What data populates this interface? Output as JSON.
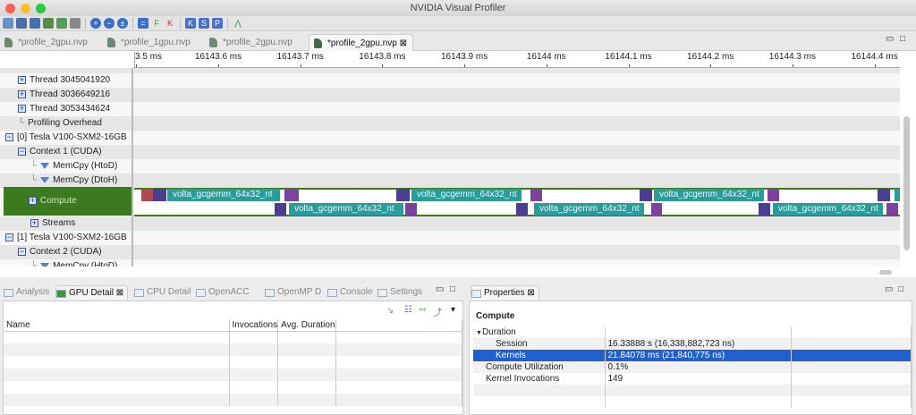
{
  "window": {
    "title": "NVIDIA Visual Profiler"
  },
  "editor_tabs": [
    {
      "label": "*profile_2gpu.nvp"
    },
    {
      "label": "*profile_1gpu.nvp"
    },
    {
      "label": "*profile_2gpu.nvp"
    },
    {
      "label": "*profile_2gpu.nvp",
      "active": true
    }
  ],
  "ruler": {
    "ticks": [
      {
        "t": 16143.5,
        "label": "3.5 ms"
      },
      {
        "t": 16143.6,
        "label": "16143.6 ms"
      },
      {
        "t": 16143.7,
        "label": "16143.7 ms"
      },
      {
        "t": 16143.8,
        "label": "16143.8 ms"
      },
      {
        "t": 16143.9,
        "label": "16143.9 ms"
      },
      {
        "t": 16144.0,
        "label": "16144 ms"
      },
      {
        "t": 16144.1,
        "label": "16144.1 ms"
      },
      {
        "t": 16144.2,
        "label": "16144.2 ms"
      },
      {
        "t": 16144.3,
        "label": "16144.3 ms"
      },
      {
        "t": 16144.4,
        "label": "16144.4 ms"
      }
    ]
  },
  "tree": {
    "rows": [
      {
        "label": "Thread 3045041920",
        "type": "expand",
        "indent": 1
      },
      {
        "label": "Thread 3036649216",
        "type": "expand",
        "indent": 1
      },
      {
        "label": "Thread 3053434624",
        "type": "expand",
        "indent": 1
      },
      {
        "label": "Profiling Overhead",
        "type": "leaf",
        "indent": 1
      },
      {
        "label": "[0] Tesla V100-SXM2-16GB",
        "type": "collapse",
        "indent": 0
      },
      {
        "label": "Context 1 (CUDA)",
        "type": "collapse",
        "indent": 1
      },
      {
        "label": "MemCpy (HtoD)",
        "type": "filter",
        "indent": 2
      },
      {
        "label": "MemCpy (DtoH)",
        "type": "filter",
        "indent": 2
      },
      {
        "label": "Compute",
        "type": "selected",
        "indent": 2
      },
      {
        "label": "Streams",
        "type": "expand",
        "indent": 2
      },
      {
        "label": "[1] Tesla V100-SXM2-16GB",
        "type": "collapse",
        "indent": 0
      },
      {
        "label": "Context 2 (CUDA)",
        "type": "collapse",
        "indent": 1
      },
      {
        "label": "MemCpy (HtoD)",
        "type": "filter",
        "indent": 2
      }
    ]
  },
  "colors": {
    "red": "#b04a52",
    "dark": "#4b3e92",
    "purple": "#7b439e",
    "teal": "#2b9c9a",
    "selection": "#3b7a1f",
    "highlight": "#1f5fcf"
  },
  "kernels": [
    {
      "lane": 0,
      "start": 16143.5073,
      "end": 16143.5215,
      "kind": "red",
      "label": ""
    },
    {
      "lane": 0,
      "start": 16143.5215,
      "end": 16143.5378,
      "kind": "dark",
      "label": ""
    },
    {
      "lane": 0,
      "start": 16143.5389,
      "end": 16143.6763,
      "kind": "teal",
      "label": "volta_gcgemm_64x32_nt"
    },
    {
      "lane": 0,
      "start": 16143.6818,
      "end": 16143.6992,
      "kind": "purple",
      "label": ""
    },
    {
      "lane": 0,
      "start": 16143.8181,
      "end": 16143.8345,
      "kind": "dark",
      "label": ""
    },
    {
      "lane": 0,
      "start": 16143.8366,
      "end": 16143.9708,
      "kind": "teal",
      "label": "volta_gcgemm_64x32_nt"
    },
    {
      "lane": 0,
      "start": 16143.9817,
      "end": 16143.9959,
      "kind": "purple",
      "label": ""
    },
    {
      "lane": 0,
      "start": 16144.1147,
      "end": 16144.13,
      "kind": "dark",
      "label": ""
    },
    {
      "lane": 0,
      "start": 16144.1322,
      "end": 16144.2663,
      "kind": "teal",
      "label": "volta_gcgemm_64x32_nt"
    },
    {
      "lane": 0,
      "start": 16144.2707,
      "end": 16144.2849,
      "kind": "purple",
      "label": ""
    },
    {
      "lane": 0,
      "start": 16144.4048,
      "end": 16144.4201,
      "kind": "dark",
      "label": ""
    },
    {
      "lane": 0,
      "start": 16144.4255,
      "end": 16144.4321,
      "kind": "teal",
      "label": ""
    },
    {
      "lane": 1,
      "start": 16143.6698,
      "end": 16143.684,
      "kind": "dark",
      "label": ""
    },
    {
      "lane": 1,
      "start": 16143.6872,
      "end": 16143.8268,
      "kind": "teal",
      "label": "volta_gcgemm_64x32_nt"
    },
    {
      "lane": 1,
      "start": 16143.829,
      "end": 16143.8432,
      "kind": "purple",
      "label": ""
    },
    {
      "lane": 1,
      "start": 16143.9642,
      "end": 16143.9784,
      "kind": "dark",
      "label": ""
    },
    {
      "lane": 1,
      "start": 16143.986,
      "end": 16144.1202,
      "kind": "teal",
      "label": "volta_gcgemm_64x32_nt"
    },
    {
      "lane": 1,
      "start": 16144.1289,
      "end": 16144.142,
      "kind": "purple",
      "label": ""
    },
    {
      "lane": 1,
      "start": 16144.2598,
      "end": 16144.274,
      "kind": "dark",
      "label": ""
    },
    {
      "lane": 1,
      "start": 16144.2772,
      "end": 16144.4113,
      "kind": "teal",
      "label": "volta_gcgemm_64x32_nt"
    },
    {
      "lane": 1,
      "start": 16144.4157,
      "end": 16144.4299,
      "kind": "purple",
      "label": ""
    }
  ],
  "bottom_left": {
    "tabs": [
      {
        "label": "Analysis"
      },
      {
        "label": "GPU Detail",
        "active": true
      },
      {
        "label": "CPU Detail"
      },
      {
        "label": "OpenACC"
      },
      {
        "label": "OpenMP D"
      },
      {
        "label": "Console"
      },
      {
        "label": "Settings"
      }
    ],
    "columns": [
      "Name",
      "Invocations",
      "Avg. Duration",
      ""
    ]
  },
  "properties": {
    "tab": "Properties",
    "section": "Compute",
    "rows": [
      {
        "name": "Duration",
        "value": "",
        "indent": 0,
        "expander": "▼"
      },
      {
        "name": "Session",
        "value": "16.33888 s (16,338,882,723 ns)",
        "indent": 2
      },
      {
        "name": "Kernels",
        "value": "21.84078 ms (21,840,775 ns)",
        "indent": 2,
        "selected": true
      },
      {
        "name": "Compute Utilization",
        "value": "0.1%",
        "indent": 1
      },
      {
        "name": "Kernel Invocations",
        "value": "149",
        "indent": 1
      }
    ]
  }
}
